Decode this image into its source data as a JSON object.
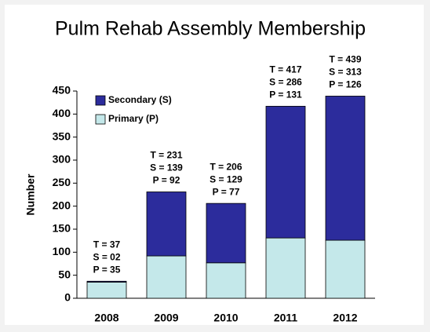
{
  "chart_data": {
    "type": "stacked_bar",
    "title": "Pulm Rehab Assembly Membership",
    "y_label": "Number",
    "categories": [
      "2008",
      "2009",
      "2010",
      "2011",
      "2012"
    ],
    "series": [
      {
        "name": "Primary (P)",
        "color": "#c4e8ea",
        "values": [
          35,
          92,
          77,
          131,
          126
        ]
      },
      {
        "name": "Secondary (S)",
        "color": "#2c2c9c",
        "values": [
          2,
          139,
          129,
          286,
          313
        ]
      }
    ],
    "annotations": [
      [
        "T = 37",
        "S = 02",
        "P = 35"
      ],
      [
        "T = 231",
        "S = 139",
        "P = 92"
      ],
      [
        "T = 206",
        "S = 129",
        "P = 77"
      ],
      [
        "T = 417",
        "S = 286",
        "P = 131"
      ],
      [
        "T = 439",
        "S = 313",
        "P = 126"
      ]
    ],
    "ylim": [
      0,
      450
    ],
    "yticks": [
      0,
      50,
      100,
      150,
      200,
      250,
      300,
      350,
      400,
      450
    ],
    "legend": "upper left",
    "grid": false
  }
}
